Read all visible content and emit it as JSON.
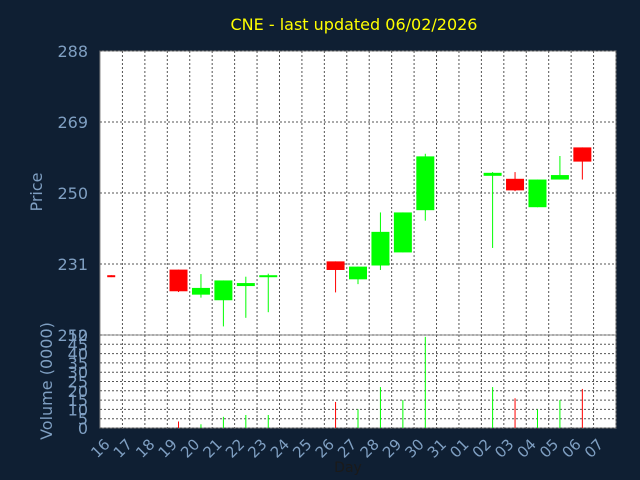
{
  "title": "CNE - last updated 06/02/2026",
  "colors": {
    "background": "#0f1f33",
    "plot_background": "#ffffff",
    "grid": "#555555",
    "up": "#00ff00",
    "down": "#ff0000",
    "title": "#ffff00",
    "axis_text": "#7f9fc2"
  },
  "chart_data": [
    {
      "type": "candlestick",
      "ylabel": "Price",
      "ylim": [
        212,
        288
      ],
      "yticks": [
        "288",
        "269",
        "250",
        "231",
        "212"
      ],
      "ytick_values": [
        288,
        269,
        250,
        231,
        212
      ],
      "grid": true,
      "categories": [
        "16",
        "17",
        "18",
        "19",
        "20",
        "21",
        "22",
        "23",
        "24",
        "25",
        "26",
        "27",
        "28",
        "29",
        "30",
        "31",
        "01",
        "02",
        "03",
        "04",
        "05",
        "06",
        "07"
      ],
      "candles": [
        {
          "day": "16",
          "open": 228,
          "close": 227.5,
          "high": 228,
          "low": 227.5
        },
        {
          "day": "19",
          "open": 229.5,
          "close": 223.7,
          "high": 229.5,
          "low": 223.5
        },
        {
          "day": "20",
          "open": 222.8,
          "close": 224.6,
          "high": 228.3,
          "low": 222
        },
        {
          "day": "21",
          "open": 221.3,
          "close": 226.6,
          "high": 226.6,
          "low": 214.3
        },
        {
          "day": "22",
          "open": 225.1,
          "close": 225.9,
          "high": 227.6,
          "low": 216.6
        },
        {
          "day": "23",
          "open": 227.6,
          "close": 228.0,
          "high": 228.4,
          "low": 218.1
        },
        {
          "day": "26",
          "open": 231.7,
          "close": 229.4,
          "high": 231.7,
          "low": 223.4
        },
        {
          "day": "27",
          "open": 226.9,
          "close": 230.3,
          "high": 230.3,
          "low": 225.6
        },
        {
          "day": "28",
          "open": 230.6,
          "close": 239.6,
          "high": 244.8,
          "low": 229.4
        },
        {
          "day": "29",
          "open": 234.1,
          "close": 244.8,
          "high": 244.8,
          "low": 234.1
        },
        {
          "day": "30",
          "open": 245.4,
          "close": 259.8,
          "high": 260.5,
          "low": 242.6
        },
        {
          "day": "02",
          "open": 254.6,
          "close": 255.4,
          "high": 255.6,
          "low": 235.3
        },
        {
          "day": "03",
          "open": 253.8,
          "close": 250.7,
          "high": 255.6,
          "low": 250.5
        },
        {
          "day": "04",
          "open": 246.2,
          "close": 253.6,
          "high": 253.6,
          "low": 246.2
        },
        {
          "day": "05",
          "open": 253.6,
          "close": 254.8,
          "high": 259.9,
          "low": 253.6
        },
        {
          "day": "06",
          "open": 262.2,
          "close": 258.4,
          "high": 262.2,
          "low": 253.6
        }
      ]
    },
    {
      "type": "bar",
      "ylabel": "Volume (0000)",
      "xlabel": "Day",
      "ylim": [
        0,
        50
      ],
      "yticks": [
        "50",
        "45",
        "40",
        "35",
        "30",
        "25",
        "20",
        "15",
        "10",
        "5",
        "0"
      ],
      "ytick_values": [
        50,
        45,
        40,
        35,
        30,
        25,
        20,
        15,
        10,
        5,
        0
      ],
      "xticks": [
        "16",
        "17",
        "18",
        "19",
        "20",
        "21",
        "22",
        "23",
        "24",
        "25",
        "26",
        "27",
        "28",
        "29",
        "30",
        "31",
        "01",
        "02",
        "03",
        "04",
        "05",
        "06",
        "07"
      ],
      "bars": [
        {
          "day": "16",
          "value": 0,
          "dir": "down"
        },
        {
          "day": "19",
          "value": 3.5,
          "dir": "down"
        },
        {
          "day": "20",
          "value": 2,
          "dir": "up"
        },
        {
          "day": "21",
          "value": 6,
          "dir": "up"
        },
        {
          "day": "22",
          "value": 7,
          "dir": "up"
        },
        {
          "day": "23",
          "value": 7,
          "dir": "up"
        },
        {
          "day": "26",
          "value": 14,
          "dir": "down"
        },
        {
          "day": "27",
          "value": 10,
          "dir": "up"
        },
        {
          "day": "28",
          "value": 22,
          "dir": "up"
        },
        {
          "day": "29",
          "value": 15,
          "dir": "up"
        },
        {
          "day": "30",
          "value": 49,
          "dir": "up"
        },
        {
          "day": "02",
          "value": 22,
          "dir": "up"
        },
        {
          "day": "03",
          "value": 16,
          "dir": "down"
        },
        {
          "day": "04",
          "value": 10,
          "dir": "up"
        },
        {
          "day": "05",
          "value": 15,
          "dir": "up"
        },
        {
          "day": "06",
          "value": 21,
          "dir": "down"
        }
      ]
    }
  ]
}
